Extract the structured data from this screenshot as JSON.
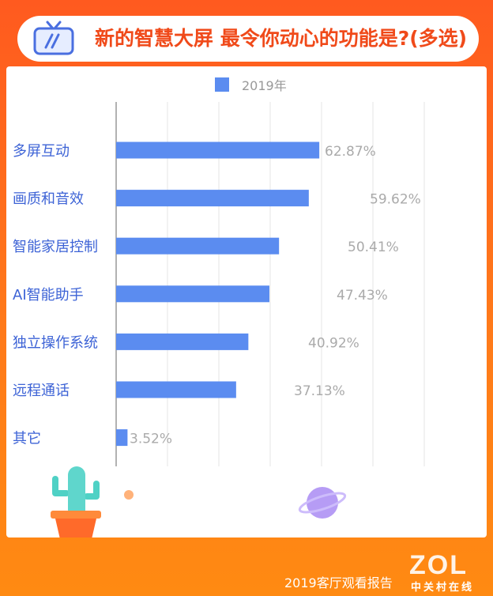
{
  "header": {
    "title": "新的智慧大屏 最令你动心的功能是?(多选)"
  },
  "colors": {
    "bar": "#5b8cf0",
    "category_text": "#3d63d6",
    "value_text": "#aaaaaa",
    "title": "#f04a1a"
  },
  "chart_data": {
    "type": "bar",
    "orientation": "horizontal",
    "categories": [
      "多屏互动",
      "画质和音效",
      "智能家居控制",
      "AI智能助手",
      "独立操作系统",
      "远程通话",
      "其它"
    ],
    "series": [
      {
        "name": "2019年",
        "values": [
          62.87,
          59.62,
          50.41,
          47.43,
          40.92,
          37.13,
          3.52
        ]
      }
    ],
    "value_labels": [
      "62.87%",
      "59.62%",
      "50.41%",
      "47.43%",
      "40.92%",
      "37.13%",
      "3.52%"
    ],
    "legend": "top-center",
    "grid": true
  },
  "footer": {
    "report": "2019客厅观看报告",
    "logo_text": "ZOL",
    "logo_sub": "中关村在线"
  }
}
